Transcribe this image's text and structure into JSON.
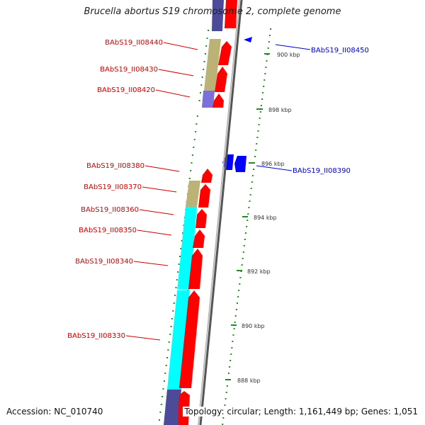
{
  "title": "Brucella abortus S19 chromosome 2, complete genome",
  "footer": {
    "accession": "Accession: NC_010740",
    "summary": "Topology: circular; Length: 1,161,449 bp; Genes: 1,051"
  },
  "colors": {
    "forward_label": "#cc0000",
    "reverse_label": "#0000cc",
    "cds_forward": "#ff0000",
    "cds_reverse": "#0000ff",
    "cog_khaki": "#bdb276",
    "cog_cyan": "#00ffff",
    "cog_slate": "#4b4b9a",
    "cog_purple": "#7b6fdc",
    "gc_tick": "#228b22",
    "backbone": "#888888"
  },
  "kbp_ticks": [
    "900 kbp",
    "898 kbp",
    "896 kbp",
    "894 kbp",
    "892 kbp",
    "890 kbp",
    "888 kbp"
  ],
  "labels": {
    "l08440": "BAbS19_II08440",
    "l08430": "BAbS19_II08430",
    "l08420": "BAbS19_II08420",
    "l08380": "BAbS19_II08380",
    "l08370": "BAbS19_II08370",
    "l08360": "BAbS19_II08360",
    "l08350": "BAbS19_II08350",
    "l08340": "BAbS19_II08340",
    "l08330": "BAbS19_II08330",
    "l08450": "BAbS19_II08450",
    "l08390": "BAbS19_II08390"
  }
}
